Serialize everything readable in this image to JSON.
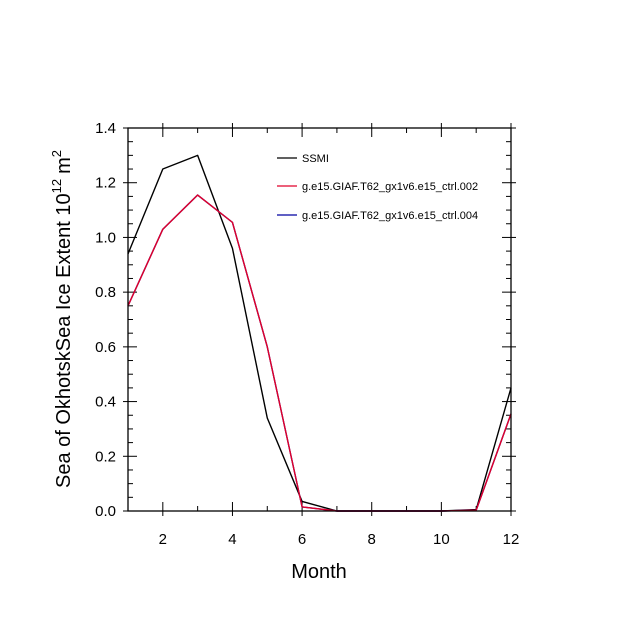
{
  "chart_data": {
    "type": "line",
    "title": "",
    "xlabel": "Month",
    "ylabel": "Sea of OkhotskSea Ice Extent 10",
    "ylabel_exponent": "12",
    "ylabel_unit": "m",
    "ylabel_unit_exponent": "2",
    "xlim": [
      1,
      12
    ],
    "ylim": [
      0.0,
      1.4
    ],
    "xticks": [
      2,
      4,
      6,
      8,
      10,
      12
    ],
    "xtick_labels": [
      "2",
      "4",
      "6",
      "8",
      "10",
      "12"
    ],
    "yticks": [
      0.0,
      0.2,
      0.4,
      0.6,
      0.8,
      1.0,
      1.2,
      1.4
    ],
    "ytick_labels": [
      "0.0",
      "0.2",
      "0.4",
      "0.6",
      "0.8",
      "1.0",
      "1.2",
      "1.4"
    ],
    "x": [
      1,
      2,
      3,
      4,
      5,
      6,
      7,
      8,
      9,
      10,
      11,
      12
    ],
    "series": [
      {
        "name": "SSMI",
        "color": "#000000",
        "values": [
          0.94,
          1.25,
          1.3,
          0.96,
          0.34,
          0.035,
          0.0,
          0.0,
          0.0,
          0.0,
          0.005,
          0.45
        ]
      },
      {
        "name": "g.e15.GIAF.T62_gx1v6.e15_ctrl.004",
        "color": "#0000a0",
        "values": [
          0.75,
          1.03,
          1.155,
          1.055,
          0.6,
          0.015,
          0.0,
          0.0,
          0.0,
          0.0,
          0.003,
          0.355
        ]
      },
      {
        "name": "g.e15.GIAF.T62_gx1v6.e15_ctrl.002",
        "color": "#e0002a",
        "values": [
          0.75,
          1.03,
          1.155,
          1.055,
          0.6,
          0.015,
          0.0,
          0.0,
          0.0,
          0.0,
          0.003,
          0.355
        ]
      }
    ],
    "legend": {
      "placement": "top-right",
      "entries": [
        {
          "label": "SSMI",
          "color": "#000000"
        },
        {
          "label": "g.e15.GIAF.T62_gx1v6.e15_ctrl.002",
          "color": "#e0002a"
        },
        {
          "label": "g.e15.GIAF.T62_gx1v6.e15_ctrl.004",
          "color": "#0000a0"
        }
      ]
    }
  }
}
